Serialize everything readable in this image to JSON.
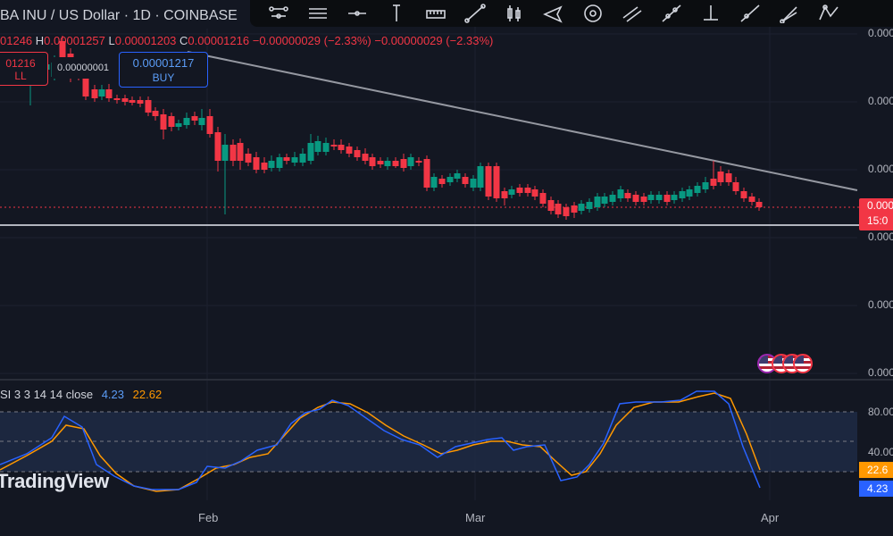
{
  "header": {
    "title": "BA INU / US Dollar · 1D · COINBASE"
  },
  "ohlc": {
    "open_label": "",
    "open_value": "01246",
    "high_label": "H",
    "high_value": "0.00001257",
    "low_label": "L",
    "low_value": "0.00001203",
    "close_label": "C",
    "close_value": "0.00001216",
    "change": "−0.00000029 (−2.33%)",
    "change2": "−0.00000029 (−2.33%)"
  },
  "trade": {
    "sell_price": "01216",
    "sell_label": "LL",
    "spread": "0.00000001",
    "buy_price": "0.00001217",
    "buy_label": "BUY"
  },
  "price_axis": {
    "labels": [
      "0.000",
      "0.000",
      "0.000",
      "0.000",
      "0.000",
      "0.000"
    ]
  },
  "current_price": {
    "price": "0.000",
    "countdown": "15:0"
  },
  "rsi": {
    "name": "SI 3 3 14 14 close",
    "k_value": "4.23",
    "d_value": "22.62",
    "axis_labels": [
      "80.00",
      "40.00"
    ],
    "k_tag": "4.23",
    "d_tag": "22.6",
    "k_color": "#2962ff",
    "d_color": "#ff9800"
  },
  "time_axis": {
    "labels": [
      "Feb",
      "Mar",
      "Apr"
    ]
  },
  "watermark": "TradingView",
  "toolbar": {
    "tools": [
      "indicators-icon",
      "lines-icon",
      "horizontal-line-icon",
      "vertical-line-icon",
      "ruler-icon",
      "trend-line-icon",
      "candles-icon",
      "pitchfork-icon",
      "circle-icon",
      "parallel-channel-icon",
      "extended-line-icon",
      "anchor-icon",
      "ray-icon",
      "fan-icon",
      "triangle-pattern-icon"
    ]
  },
  "colors": {
    "up": "#089981",
    "down": "#f23645",
    "background": "#131722"
  }
}
